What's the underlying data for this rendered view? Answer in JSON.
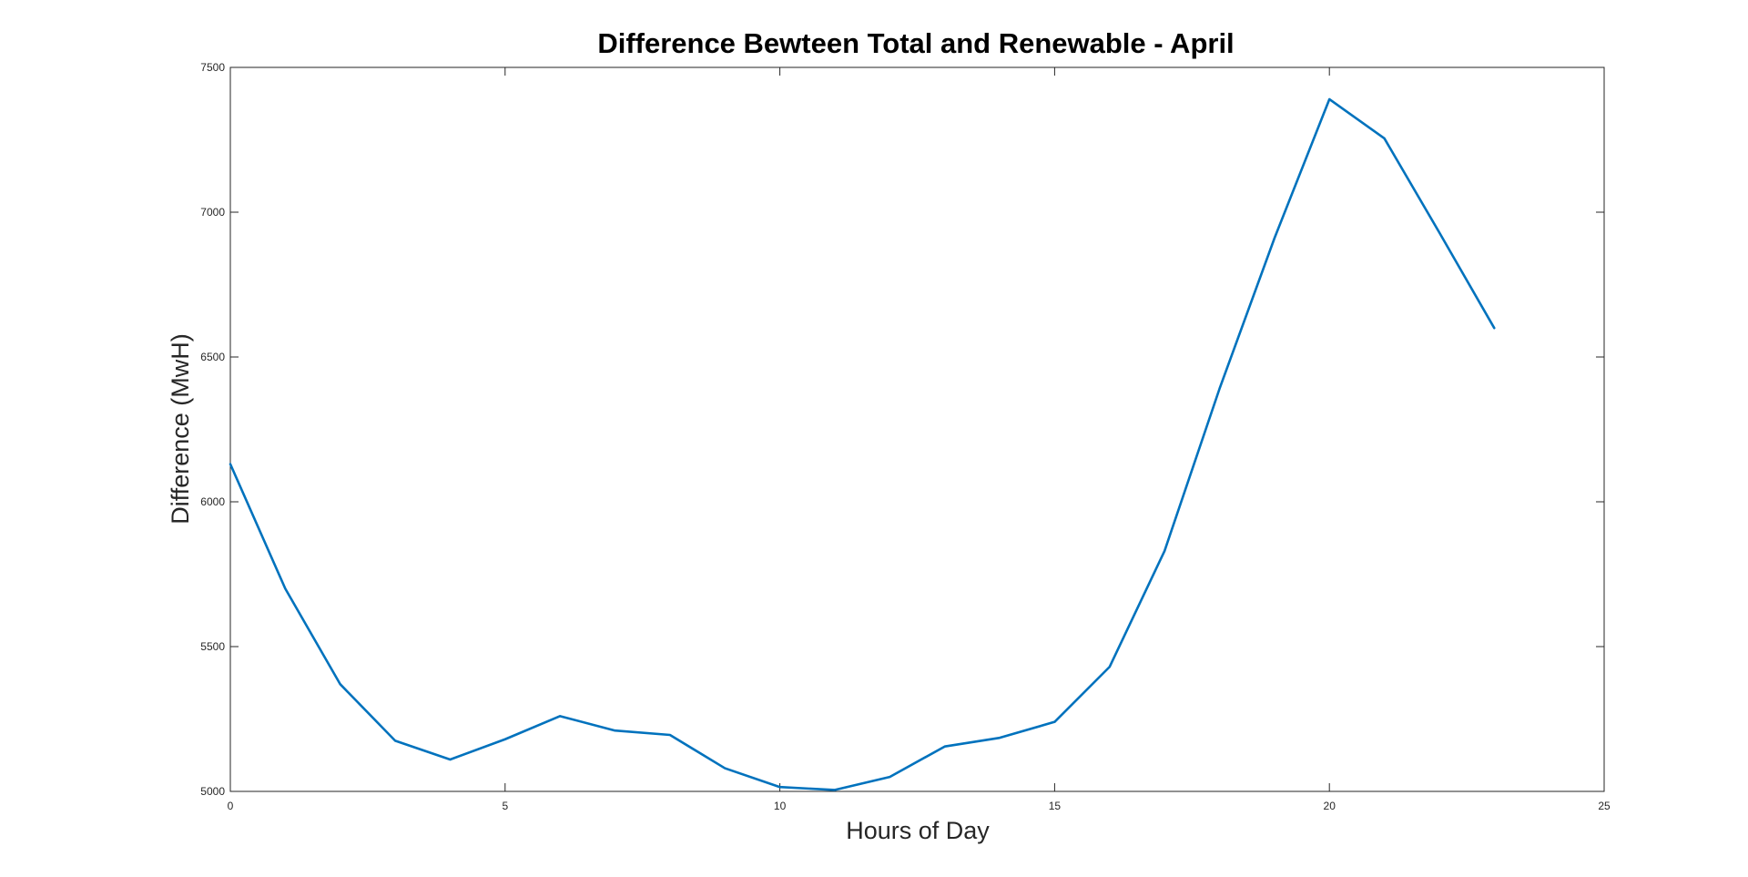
{
  "chart_data": {
    "type": "line",
    "title": "Difference Bewteen Total and Renewable - April",
    "xlabel": "Hours of Day",
    "ylabel": "Difference (MwH)",
    "xlim": [
      0,
      25
    ],
    "ylim": [
      5000,
      7500
    ],
    "xticks": [
      0,
      5,
      10,
      15,
      20,
      25
    ],
    "yticks": [
      5000,
      5500,
      6000,
      6500,
      7000,
      7500
    ],
    "grid": false,
    "series_color": "#0072BD",
    "x": [
      0,
      1,
      2,
      3,
      4,
      5,
      6,
      7,
      8,
      9,
      10,
      11,
      12,
      13,
      14,
      15,
      16,
      17,
      18,
      19,
      20,
      21,
      22,
      23
    ],
    "series": [
      {
        "values": [
          6130,
          5700,
          5370,
          5175,
          5110,
          5180,
          5260,
          5210,
          5195,
          5080,
          5015,
          5005,
          5050,
          5155,
          5185,
          5240,
          5430,
          5830,
          6390,
          6910,
          7390,
          7255,
          6930,
          6600
        ]
      }
    ]
  }
}
